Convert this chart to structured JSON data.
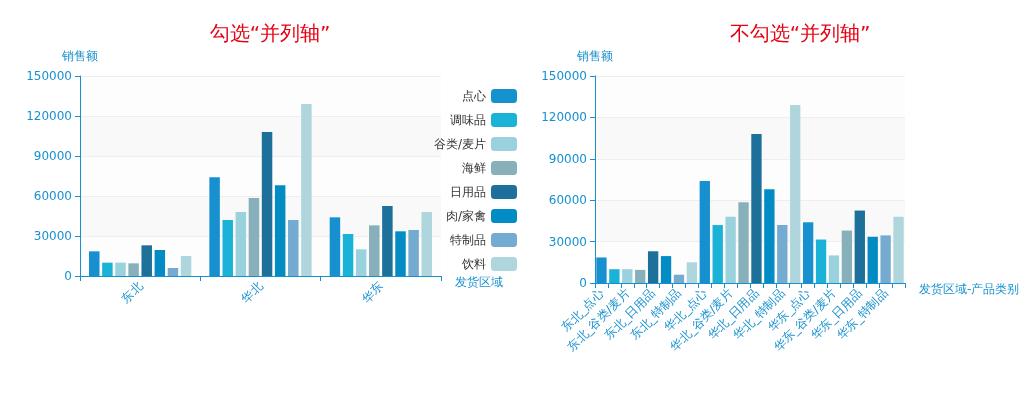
{
  "chart_data": [
    {
      "type": "bar",
      "title": "勾选“并列轴”",
      "xlabel": "发货区域",
      "ylabel": "销售额",
      "categories": [
        "东北",
        "华北",
        "华东"
      ],
      "series": [
        {
          "name": "点心",
          "color": "#1790cf",
          "values": [
            18500,
            74000,
            44000
          ]
        },
        {
          "name": "调味品",
          "color": "#1bb2d8",
          "values": [
            10000,
            42000,
            31500
          ]
        },
        {
          "name": "谷类/麦片",
          "color": "#99d2dd",
          "values": [
            10000,
            48000,
            20000
          ]
        },
        {
          "name": "海鲜",
          "color": "#88b0bb",
          "values": [
            9500,
            58500,
            38000
          ]
        },
        {
          "name": "日用品",
          "color": "#1c7099",
          "values": [
            23000,
            108000,
            52500
          ]
        },
        {
          "name": "肉/家禽",
          "color": "#038cc4",
          "values": [
            19500,
            68000,
            33500
          ]
        },
        {
          "name": "特制品",
          "color": "#75abd0",
          "values": [
            6000,
            42000,
            34500
          ]
        },
        {
          "name": "饮料",
          "color": "#afd6dd",
          "values": [
            15000,
            129000,
            48000
          ]
        }
      ],
      "ylim": [
        0,
        150000
      ],
      "yticks": [
        0,
        30000,
        60000,
        90000,
        120000,
        150000
      ],
      "grid": "y",
      "legend": "right"
    },
    {
      "type": "bar",
      "title": "不勾选“并列轴”",
      "xlabel": "发货区域-产品类别",
      "ylabel": "销售额",
      "categories": [
        "东北_点心",
        null,
        "东北_谷类/麦片",
        null,
        "东北_日用品",
        null,
        "东北_特制品",
        null,
        "华北_点心",
        null,
        "华北_谷类/麦片",
        null,
        "华北_日用品",
        null,
        "华北_特制品",
        null,
        "华东_点心",
        null,
        "华东_谷类/麦片",
        null,
        "华东_日用品",
        null,
        "华东_特制品",
        null
      ],
      "values": [
        18500,
        10000,
        10000,
        9500,
        23000,
        19500,
        6000,
        15000,
        74000,
        42000,
        48000,
        58500,
        108000,
        68000,
        42000,
        129000,
        44000,
        31500,
        20000,
        38000,
        52500,
        33500,
        34500,
        48000
      ],
      "colors": [
        "#1790cf",
        "#1bb2d8",
        "#99d2dd",
        "#88b0bb",
        "#1c7099",
        "#038cc4",
        "#75abd0",
        "#afd6dd",
        "#1790cf",
        "#1bb2d8",
        "#99d2dd",
        "#88b0bb",
        "#1c7099",
        "#038cc4",
        "#75abd0",
        "#afd6dd",
        "#1790cf",
        "#1bb2d8",
        "#99d2dd",
        "#88b0bb",
        "#1c7099",
        "#038cc4",
        "#75abd0",
        "#afd6dd"
      ],
      "ylim": [
        0,
        150000
      ],
      "yticks": [
        0,
        30000,
        60000,
        90000,
        120000,
        150000
      ],
      "grid": "y",
      "legend": false
    }
  ]
}
